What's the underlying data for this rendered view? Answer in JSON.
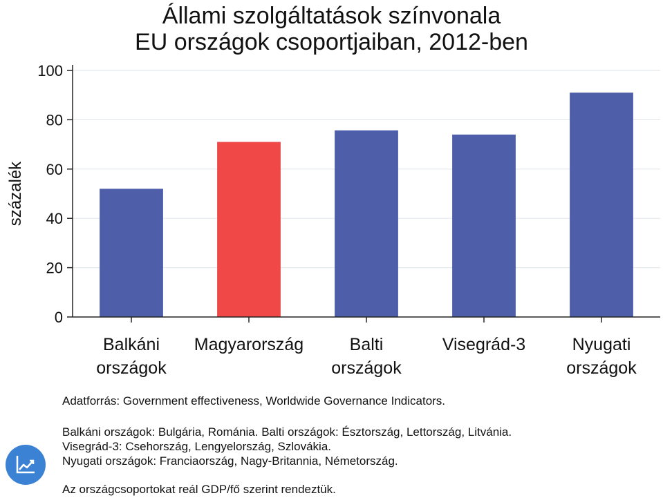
{
  "chart_data": {
    "type": "bar",
    "title": [
      "Állami szolgáltatások színvonala",
      "EU országok csoportjaiban, 2012-ben"
    ],
    "ylabel": "százalék",
    "xlabel": "",
    "ylim": [
      0,
      100
    ],
    "yticks": [
      0,
      20,
      40,
      60,
      80,
      100
    ],
    "categories": [
      [
        "Balkáni",
        "országok"
      ],
      [
        "Magyarország"
      ],
      [
        "Balti",
        "országok"
      ],
      [
        "Visegrád-3"
      ],
      [
        "Nyugati",
        "országok"
      ]
    ],
    "values": [
      52,
      71,
      75.7,
      74,
      91
    ],
    "highlight_index": 1,
    "colors": {
      "bar": "#4f5ea8",
      "highlight": "#f04747",
      "grid": "#e4e9ee",
      "axis": "#222222"
    },
    "grid": true,
    "legend": "none"
  },
  "notes": {
    "source": "Adatforrás: Government effectiveness, Worldwide Governance Indicators.",
    "groups": [
      "Balkáni országok: Bulgária, Románia. Balti országok: Észtország, Lettország, Litvánia.",
      "Visegrád-3: Csehország, Lengyelország, Szlovákia.",
      "Nyugati országok: Franciaország, Nagy-Britannia, Németország."
    ],
    "ordering": "Az országcsoportokat reál GDP/fő szerint rendeztük."
  },
  "logo": {
    "icon": "trend-chart-icon",
    "color": "#3b82d4"
  }
}
